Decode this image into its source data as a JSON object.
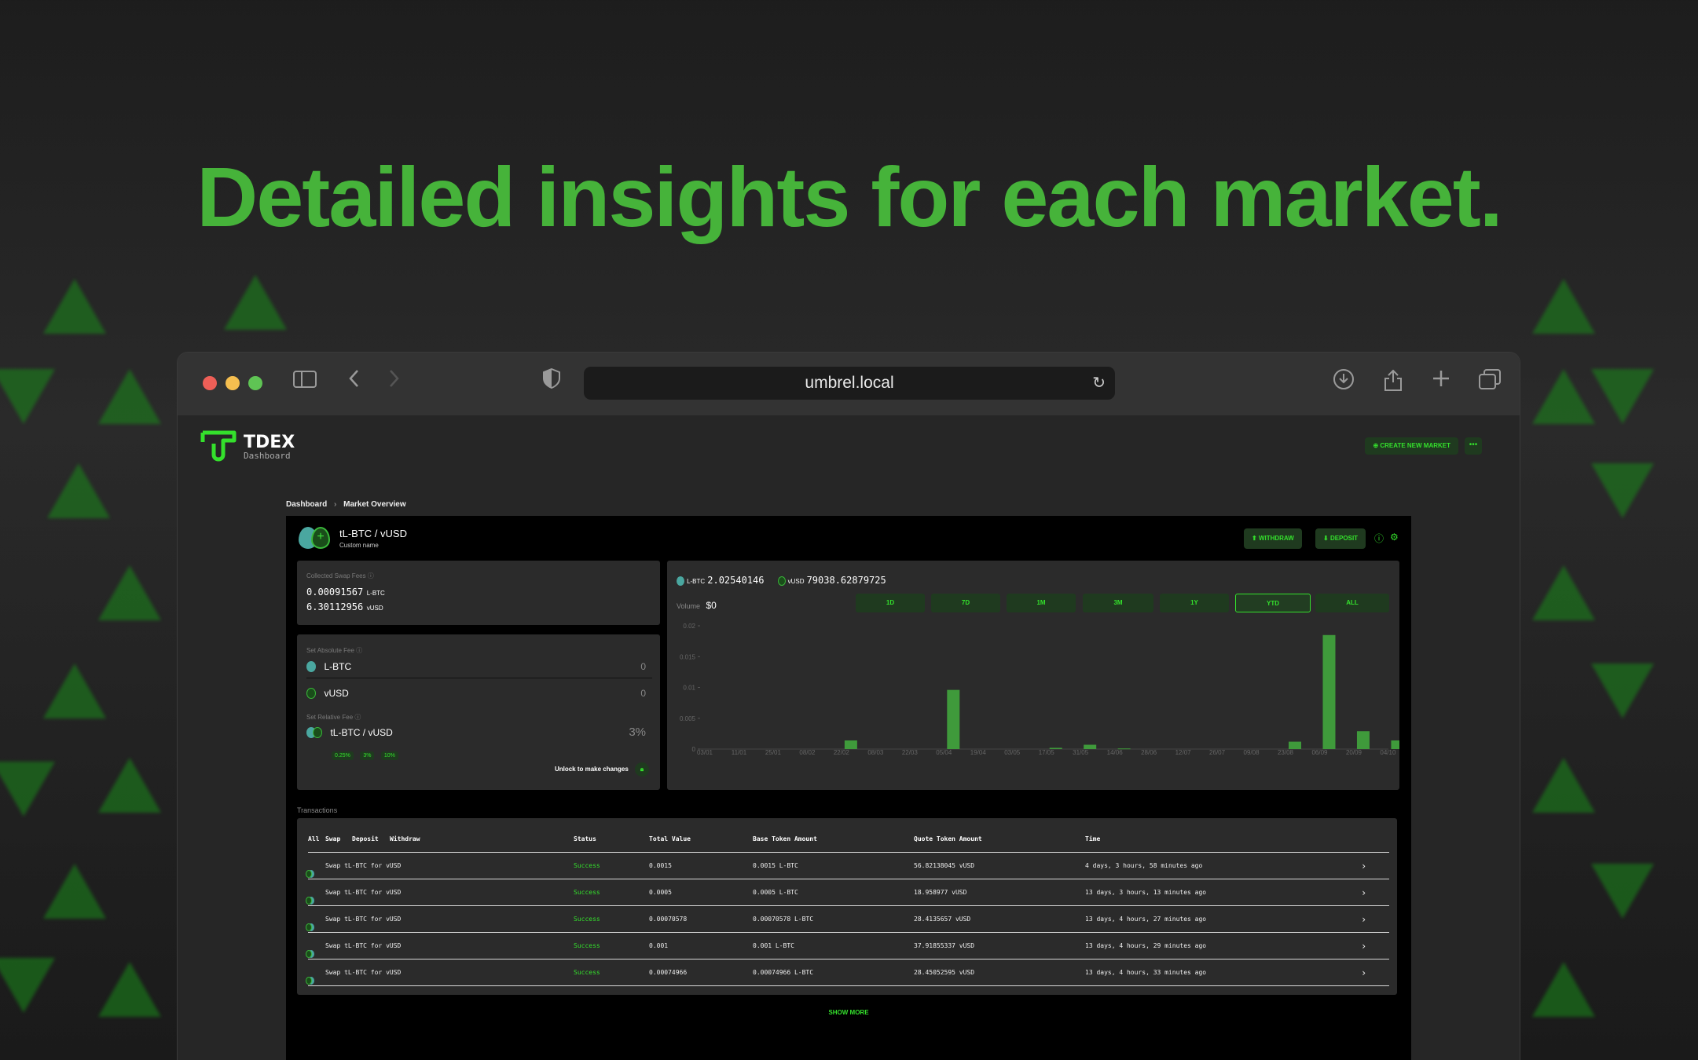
{
  "headline": "Detailed insights for each market.",
  "browser": {
    "url": "umbrel.local"
  },
  "app": {
    "logo_title": "TDEX",
    "logo_subtitle": "Dashboard",
    "create_market_label": "CREATE NEW MARKET",
    "more_label": "•••"
  },
  "breadcrumb": {
    "root": "Dashboard",
    "current": "Market Overview"
  },
  "market": {
    "pair": "tL-BTC / vUSD",
    "custom_name": "Custom name",
    "withdraw_label": "WITHDRAW",
    "deposit_label": "DEPOSIT"
  },
  "fees": {
    "collected_label": "Collected Swap Fees",
    "collected_base_value": "0.00091567",
    "collected_base_unit": "L-BTC",
    "collected_quote_value": "6.30112956",
    "collected_quote_unit": "vUSD",
    "absolute_label": "Set Absolute Fee",
    "abs_base_asset": "L-BTC",
    "abs_base_value": "0",
    "abs_quote_asset": "vUSD",
    "abs_quote_value": "0",
    "relative_label": "Set Relative Fee",
    "relative_pair": "tL-BTC / vUSD",
    "relative_value": "3",
    "relative_unit": "%",
    "chips": [
      "0.25%",
      "3%",
      "10%"
    ],
    "unlock_label": "Unlock to make changes"
  },
  "balances": {
    "base_asset": "L-BTC",
    "base_value": "2.02540146",
    "quote_asset": "vUSD",
    "quote_value": "79038.62879725"
  },
  "volume": {
    "label": "Volume",
    "value": "$0"
  },
  "ranges": [
    "1D",
    "7D",
    "1M",
    "3M",
    "1Y",
    "YTD",
    "ALL"
  ],
  "active_range": "YTD",
  "chart_data": {
    "type": "bar",
    "title": "Volume",
    "ylim": [
      0,
      0.02
    ],
    "yticks": [
      "0",
      "0.005",
      "0.01",
      "0.015",
      "0.02"
    ],
    "categories": [
      "03/01",
      "11/01",
      "25/01",
      "08/02",
      "22/02",
      "08/03",
      "22/03",
      "05/04",
      "19/04",
      "03/05",
      "17/05",
      "31/05",
      "14/06",
      "28/06",
      "12/07",
      "26/07",
      "09/08",
      "23/08",
      "06/09",
      "20/09",
      "04/10"
    ],
    "values": [
      0,
      0,
      0,
      0,
      0.0014,
      0,
      0,
      0.0096,
      0,
      0,
      0.0002,
      0.0007,
      0.0001,
      0,
      0,
      0,
      0,
      0.0012,
      0.0185,
      0.0029,
      0.0014
    ],
    "xlabel": "",
    "ylabel": ""
  },
  "transactions": {
    "title": "Transactions",
    "filters": [
      "All",
      "Swap",
      "Deposit",
      "Withdraw"
    ],
    "columns": [
      "Status",
      "Total Value",
      "Base Token Amount",
      "Quote Token Amount",
      "Time"
    ],
    "rows": [
      {
        "desc": "Swap tL-BTC for vUSD",
        "status": "Success",
        "total": "0.0015",
        "base": "0.0015 L-BTC",
        "quote": "56.82138045 vUSD",
        "time": "4 days, 3 hours, 58 minutes ago"
      },
      {
        "desc": "Swap tL-BTC for vUSD",
        "status": "Success",
        "total": "0.0005",
        "base": "0.0005 L-BTC",
        "quote": "18.958977 vUSD",
        "time": "13 days, 3 hours, 13 minutes ago"
      },
      {
        "desc": "Swap tL-BTC for vUSD",
        "status": "Success",
        "total": "0.00070578",
        "base": "0.00070578 L-BTC",
        "quote": "28.4135657 vUSD",
        "time": "13 days, 4 hours, 27 minutes ago"
      },
      {
        "desc": "Swap tL-BTC for vUSD",
        "status": "Success",
        "total": "0.001",
        "base": "0.001 L-BTC",
        "quote": "37.91855337 vUSD",
        "time": "13 days, 4 hours, 29 minutes ago"
      },
      {
        "desc": "Swap tL-BTC for vUSD",
        "status": "Success",
        "total": "0.00074966",
        "base": "0.00074966 L-BTC",
        "quote": "28.45052595 vUSD",
        "time": "13 days, 4 hours, 33 minutes ago"
      }
    ],
    "show_more": "SHOW MORE"
  }
}
